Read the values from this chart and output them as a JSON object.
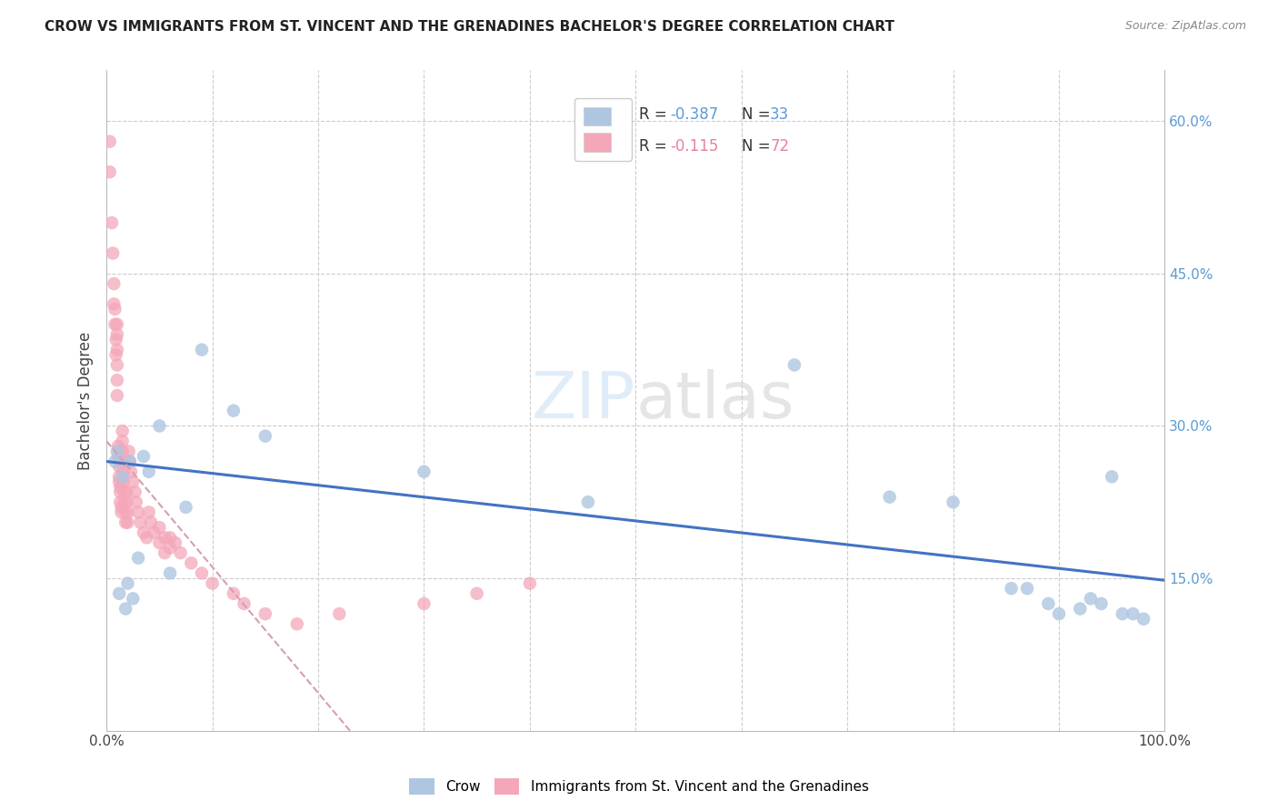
{
  "title": "CROW VS IMMIGRANTS FROM ST. VINCENT AND THE GRENADINES BACHELOR'S DEGREE CORRELATION CHART",
  "source": "Source: ZipAtlas.com",
  "xlabel": "",
  "ylabel": "Bachelor's Degree",
  "xlim": [
    0,
    1.0
  ],
  "ylim": [
    0,
    0.65
  ],
  "xticks": [
    0.0,
    0.1,
    0.2,
    0.3,
    0.4,
    0.5,
    0.6,
    0.7,
    0.8,
    0.9,
    1.0
  ],
  "xticklabels": [
    "0.0%",
    "",
    "",
    "",
    "",
    "",
    "",
    "",
    "",
    "",
    "100.0%"
  ],
  "yticks": [
    0.0,
    0.15,
    0.3,
    0.45,
    0.6
  ],
  "yticklabels": [
    "",
    "15.0%",
    "30.0%",
    "45.0%",
    "60.0%"
  ],
  "blue_color": "#aec6e0",
  "pink_color": "#f4a7b9",
  "blue_line_color": "#4472c4",
  "pink_line_color": "#d3a0b0",
  "grid_color": "#cccccc",
  "background_color": "#ffffff",
  "crow_scatter_x": [
    0.008,
    0.01,
    0.012,
    0.015,
    0.018,
    0.02,
    0.022,
    0.025,
    0.03,
    0.035,
    0.04,
    0.05,
    0.06,
    0.075,
    0.09,
    0.12,
    0.15,
    0.3,
    0.455,
    0.65,
    0.74,
    0.8,
    0.855,
    0.87,
    0.89,
    0.9,
    0.92,
    0.93,
    0.94,
    0.95,
    0.96,
    0.97,
    0.98
  ],
  "crow_scatter_y": [
    0.265,
    0.275,
    0.135,
    0.25,
    0.12,
    0.145,
    0.265,
    0.13,
    0.17,
    0.27,
    0.255,
    0.3,
    0.155,
    0.22,
    0.375,
    0.315,
    0.29,
    0.255,
    0.225,
    0.36,
    0.23,
    0.225,
    0.14,
    0.14,
    0.125,
    0.115,
    0.12,
    0.13,
    0.125,
    0.25,
    0.115,
    0.115,
    0.11
  ],
  "svg_scatter_x": [
    0.003,
    0.003,
    0.005,
    0.006,
    0.007,
    0.007,
    0.008,
    0.008,
    0.009,
    0.009,
    0.01,
    0.01,
    0.01,
    0.01,
    0.01,
    0.01,
    0.011,
    0.011,
    0.012,
    0.012,
    0.012,
    0.013,
    0.013,
    0.013,
    0.014,
    0.014,
    0.015,
    0.015,
    0.015,
    0.016,
    0.016,
    0.016,
    0.017,
    0.017,
    0.018,
    0.018,
    0.019,
    0.019,
    0.02,
    0.02,
    0.021,
    0.022,
    0.023,
    0.025,
    0.027,
    0.028,
    0.03,
    0.032,
    0.035,
    0.038,
    0.04,
    0.042,
    0.045,
    0.05,
    0.055,
    0.06,
    0.065,
    0.07,
    0.08,
    0.09,
    0.1,
    0.12,
    0.13,
    0.15,
    0.18,
    0.22,
    0.3,
    0.35,
    0.4,
    0.05,
    0.055,
    0.06
  ],
  "svg_scatter_y": [
    0.58,
    0.55,
    0.5,
    0.47,
    0.44,
    0.42,
    0.415,
    0.4,
    0.385,
    0.37,
    0.4,
    0.39,
    0.375,
    0.36,
    0.345,
    0.33,
    0.28,
    0.27,
    0.26,
    0.25,
    0.245,
    0.24,
    0.235,
    0.225,
    0.22,
    0.215,
    0.295,
    0.285,
    0.275,
    0.265,
    0.255,
    0.245,
    0.235,
    0.225,
    0.215,
    0.205,
    0.235,
    0.225,
    0.215,
    0.205,
    0.275,
    0.265,
    0.255,
    0.245,
    0.235,
    0.225,
    0.215,
    0.205,
    0.195,
    0.19,
    0.215,
    0.205,
    0.195,
    0.185,
    0.175,
    0.19,
    0.185,
    0.175,
    0.165,
    0.155,
    0.145,
    0.135,
    0.125,
    0.115,
    0.105,
    0.115,
    0.125,
    0.135,
    0.145,
    0.2,
    0.19,
    0.18
  ],
  "blue_trend_x": [
    0.0,
    1.0
  ],
  "blue_trend_y": [
    0.265,
    0.148
  ],
  "pink_trend_x": [
    0.0,
    0.23
  ],
  "pink_trend_y": [
    0.285,
    0.0
  ]
}
